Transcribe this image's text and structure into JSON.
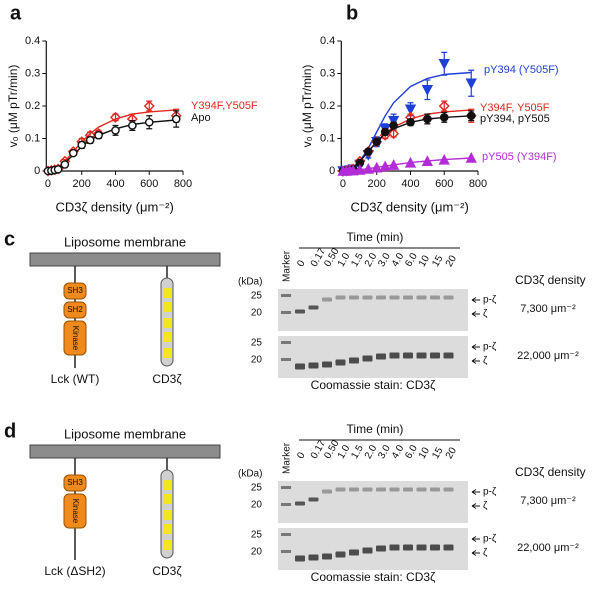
{
  "chart_data": [
    {
      "type": "scatter",
      "label": "a",
      "xlabel": "CD3ζ density (μm⁻²)",
      "ylabel": "v₀ (μM pTr/min)",
      "x": [
        0,
        20,
        40,
        60,
        100,
        150,
        200,
        250,
        300,
        400,
        500,
        600,
        760
      ],
      "xlim": [
        -10,
        800
      ],
      "xticks": [
        0,
        200,
        400,
        600,
        800
      ],
      "ylim": [
        0,
        0.4
      ],
      "yticks": [
        0,
        0.1,
        0.2,
        0.3,
        0.4
      ],
      "series": [
        {
          "name": "Y394F,Y505F",
          "color": "#e3271c",
          "marker": "diamond-open",
          "values": [
            0,
            0.002,
            0.004,
            0.006,
            0.03,
            0.06,
            0.09,
            0.11,
            0.115,
            0.165,
            0.16,
            0.2,
            0.17
          ],
          "errors": [
            0,
            0,
            0,
            0,
            0.005,
            0.005,
            0.01,
            0.01,
            0.01,
            0.01,
            0.015,
            0.015,
            0.02
          ],
          "fit": [
            0,
            0.002,
            0.006,
            0.012,
            0.03,
            0.06,
            0.09,
            0.115,
            0.135,
            0.16,
            0.175,
            0.182,
            0.188
          ]
        },
        {
          "name": "Apo",
          "color": "#111111",
          "marker": "circle-open",
          "values": [
            0,
            0.001,
            0.003,
            0.005,
            0.02,
            0.055,
            0.08,
            0.095,
            0.11,
            0.125,
            0.14,
            0.15,
            0.16
          ],
          "errors": [
            0,
            0,
            0,
            0,
            0.005,
            0.005,
            0.01,
            0.01,
            0.01,
            0.015,
            0.015,
            0.02,
            0.025
          ],
          "fit": [
            0,
            0.002,
            0.005,
            0.01,
            0.025,
            0.05,
            0.075,
            0.095,
            0.11,
            0.13,
            0.143,
            0.15,
            0.157
          ]
        }
      ]
    },
    {
      "type": "scatter",
      "label": "b",
      "xlabel": "CD3ζ density (μm⁻²)",
      "ylabel": "v₀ (μM pTr/min)",
      "x": [
        0,
        20,
        40,
        60,
        100,
        150,
        200,
        250,
        300,
        400,
        500,
        600,
        760
      ],
      "xlim": [
        -10,
        800
      ],
      "xticks": [
        0,
        200,
        400,
        600,
        800
      ],
      "ylim": [
        0,
        0.4
      ],
      "yticks": [
        0,
        0.1,
        0.2,
        0.3,
        0.4
      ],
      "series": [
        {
          "name": "pY394 (Y505F)",
          "color": "#1f3fd9",
          "marker": "triangle-down",
          "values": [
            0,
            0.001,
            0.003,
            0.006,
            0.02,
            0.05,
            0.09,
            0.13,
            0.155,
            0.19,
            0.25,
            0.33,
            0.27
          ],
          "errors": [
            0,
            0,
            0,
            0,
            0.005,
            0.01,
            0.015,
            0.015,
            0.02,
            0.02,
            0.03,
            0.035,
            0.04
          ],
          "fit": [
            0,
            0.001,
            0.004,
            0.01,
            0.03,
            0.07,
            0.12,
            0.17,
            0.21,
            0.26,
            0.285,
            0.297,
            0.303
          ]
        },
        {
          "name": "Y394F, Y505F",
          "color": "#e3271c",
          "marker": "diamond-open",
          "values": [
            0,
            0.002,
            0.004,
            0.006,
            0.03,
            0.06,
            0.09,
            0.11,
            0.115,
            0.165,
            0.16,
            0.2,
            0.17
          ],
          "errors": [
            0,
            0,
            0,
            0,
            0.005,
            0.005,
            0.01,
            0.01,
            0.01,
            0.01,
            0.015,
            0.015,
            0.02
          ],
          "fit": [
            0,
            0.002,
            0.006,
            0.012,
            0.03,
            0.06,
            0.09,
            0.115,
            0.135,
            0.16,
            0.175,
            0.182,
            0.188
          ]
        },
        {
          "name": "pY394, pY505",
          "color": "#111111",
          "marker": "circle",
          "values": [
            0,
            0.001,
            0.002,
            0.005,
            0.025,
            0.06,
            0.09,
            0.12,
            0.14,
            0.15,
            0.16,
            0.165,
            0.17
          ],
          "errors": [
            0,
            0,
            0,
            0,
            0.005,
            0.005,
            0.01,
            0.01,
            0.01,
            0.01,
            0.015,
            0.015,
            0.015
          ],
          "fit": [
            0,
            0.002,
            0.005,
            0.01,
            0.03,
            0.06,
            0.09,
            0.115,
            0.13,
            0.15,
            0.16,
            0.165,
            0.17
          ]
        },
        {
          "name": "pY505 (Y394F)",
          "color": "#b42cd8",
          "marker": "triangle-up",
          "values": [
            0,
            0,
            0.001,
            0.001,
            0.003,
            0.006,
            0.01,
            0.014,
            0.018,
            0.025,
            0.03,
            0.034,
            0.04
          ],
          "errors": [
            0,
            0,
            0,
            0,
            0,
            0,
            0,
            0,
            0,
            0,
            0,
            0,
            0
          ],
          "fit": [
            0,
            0,
            0.001,
            0.002,
            0.004,
            0.007,
            0.011,
            0.015,
            0.019,
            0.026,
            0.031,
            0.035,
            0.04
          ]
        }
      ]
    }
  ],
  "panels": [
    {
      "label": "c",
      "membrane": "Liposome membrane",
      "domains": [
        "SH3",
        "SH2",
        "Kinase"
      ],
      "kinase_label": "Lck (WT)",
      "substrate_label": "CD3ζ",
      "gel": {
        "kda": "(kDa)",
        "marker": "Marker",
        "time_title": "Time (min)",
        "lanes": [
          "0",
          "0.17",
          "0.50",
          "1.0",
          "1.5",
          "2.0",
          "3.0",
          "4.0",
          "6.0",
          "10",
          "15",
          "20"
        ],
        "density_title": "CD3ζ density",
        "caption": "Coomassie stain: CD3ζ",
        "rows": [
          {
            "mw": [
              "25",
              "20"
            ],
            "bands": [
              "p-ζ",
              "ζ"
            ],
            "density": "7,300 μm⁻²"
          },
          {
            "mw": [
              "25",
              "20"
            ],
            "bands": [
              "p-ζ",
              "ζ"
            ],
            "density": "22,000 μm⁻²"
          }
        ]
      }
    },
    {
      "label": "d",
      "membrane": "Liposome membrane",
      "domains": [
        "SH3",
        "Kinase"
      ],
      "kinase_label": "Lck (ΔSH2)",
      "substrate_label": "CD3ζ",
      "gel": {
        "kda": "(kDa)",
        "marker": "Marker",
        "time_title": "Time (min)",
        "lanes": [
          "0",
          "0.17",
          "0.50",
          "1.0",
          "1.5",
          "2.0",
          "3.0",
          "4.0",
          "6.0",
          "10",
          "15",
          "20"
        ],
        "density_title": "CD3ζ density",
        "caption": "Coomassie stain: CD3ζ",
        "rows": [
          {
            "mw": [
              "25",
              "20"
            ],
            "bands": [
              "p-ζ",
              "ζ"
            ],
            "density": "7,300 μm⁻²"
          },
          {
            "mw": [
              "25",
              "20"
            ],
            "bands": [
              "p-ζ",
              "ζ"
            ],
            "density": "22,000 μm⁻²"
          }
        ]
      }
    }
  ]
}
